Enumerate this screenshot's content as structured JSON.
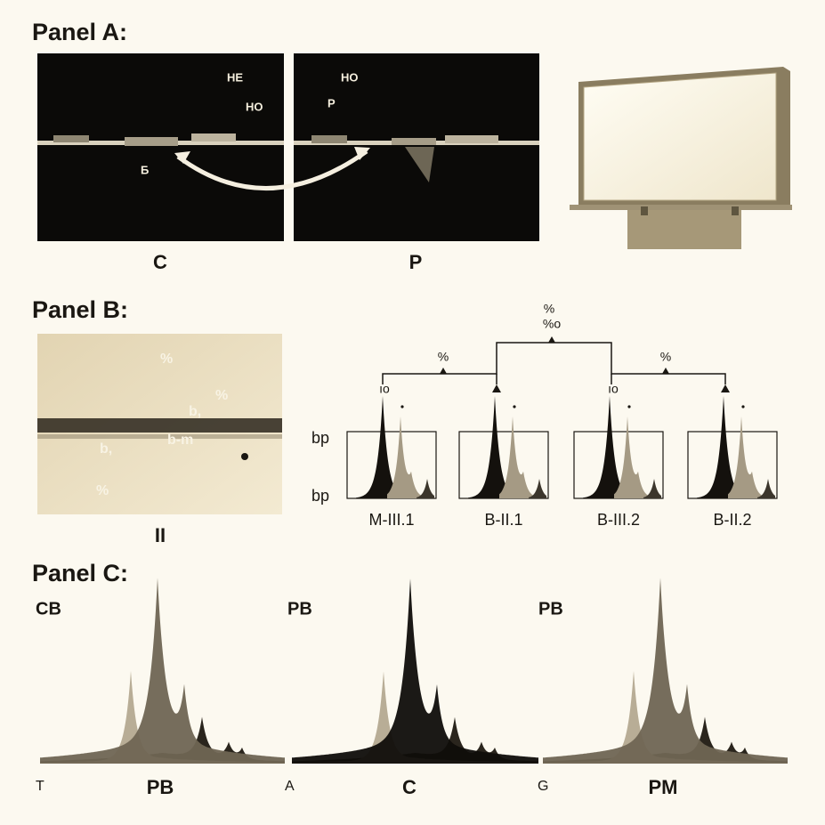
{
  "panel_a": {
    "title": "Panel A:",
    "left_image": {
      "labels": [
        "HE",
        "HO",
        "Б"
      ],
      "caption": "C"
    },
    "right_image": {
      "labels": [
        "HO",
        "P"
      ],
      "caption": "P"
    }
  },
  "panel_b": {
    "title": "Panel B:",
    "gel": {
      "labels": [
        "%",
        "%",
        "b,",
        "b-m",
        "b,",
        "%"
      ],
      "caption": "II"
    },
    "tree": {
      "root_labels": [
        "%",
        "%o"
      ],
      "branch_labels": [
        "%",
        "%"
      ],
      "node_labels": [
        "ıo",
        "ıo"
      ]
    },
    "y_labels": [
      "bp",
      "bp"
    ],
    "samples": [
      "M-III.1",
      "B-II.1",
      "B-III.2",
      "B-II.2"
    ]
  },
  "panel_c": {
    "title": "Panel C:",
    "plot_labels": [
      "CB",
      "PB",
      "PB"
    ],
    "start_labels": [
      "T",
      "A",
      "G"
    ],
    "captions": [
      "PB",
      "C",
      "PM"
    ]
  }
}
